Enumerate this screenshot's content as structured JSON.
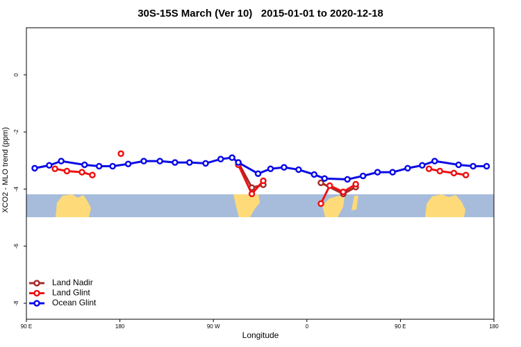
{
  "chart_data": {
    "type": "line",
    "title": "30S-15S March (Ver 10)   2015-01-01 to 2020-12-18",
    "xlabel": "Longitude",
    "ylabel": "XCO2 - MLO trend (ppm)",
    "xlim": [
      90,
      540
    ],
    "ylim": [
      -8.56,
      1.65
    ],
    "xticks": [
      {
        "value": 90,
        "label": "90 E"
      },
      180,
      {
        "value": 270,
        "label": "90 W"
      },
      {
        "value": 360,
        "label": "0"
      },
      {
        "value": 450,
        "label": "90 E"
      },
      {
        "value": 540,
        "label": "180"
      }
    ],
    "yticks": [
      0,
      -2,
      -4,
      -6,
      -8
    ],
    "legend": "bottom-left",
    "series": [
      {
        "name": "Land Nadir",
        "color": "#a52a2a",
        "x": [
          294,
          307,
          318,
          null,
          373.5,
          395,
          407
        ],
        "values": [
          -3.07,
          -3.95,
          -3.85,
          null,
          -3.78,
          -4.17,
          -3.93
        ]
      },
      {
        "name": "Land Glint",
        "color": "#ee1111",
        "x": [
          117.5,
          129,
          143.5,
          153.5,
          null,
          181,
          null,
          294,
          307,
          318,
          null,
          373.5,
          382,
          395,
          407,
          null,
          477.5,
          488,
          501.5,
          513
        ],
        "values": [
          -3.29,
          -3.37,
          -3.41,
          -3.51,
          null,
          -2.76,
          null,
          -3.15,
          -4.17,
          -3.71,
          null,
          -4.51,
          -3.88,
          -4.1,
          -3.83,
          null,
          -3.29,
          -3.37,
          -3.44,
          -3.51
        ]
      },
      {
        "name": "Ocean Glint",
        "color": "#0a0ae6",
        "x": [
          98,
          112,
          123.5,
          146,
          160,
          173,
          188,
          203,
          218.5,
          233,
          247,
          262.5,
          277,
          288,
          294,
          313,
          325,
          338,
          352,
          367,
          377,
          399,
          414,
          428,
          442.5,
          457,
          471,
          483,
          506,
          520,
          533
        ],
        "values": [
          -3.27,
          -3.17,
          -3.02,
          -3.15,
          -3.2,
          -3.2,
          -3.12,
          -3.02,
          -3.02,
          -3.07,
          -3.07,
          -3.1,
          -2.95,
          -2.9,
          -3.07,
          -3.46,
          -3.29,
          -3.24,
          -3.32,
          -3.49,
          -3.63,
          -3.66,
          -3.54,
          -3.41,
          -3.41,
          -3.27,
          -3.17,
          -3.02,
          -3.15,
          -3.2,
          -3.2
        ]
      }
    ]
  }
}
